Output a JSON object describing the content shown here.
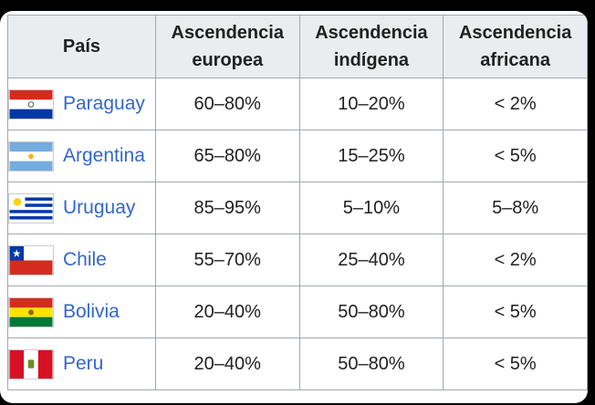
{
  "table": {
    "headers": [
      "País",
      "Ascendencia europea",
      "Ascendencia indígena",
      "Ascendencia africana"
    ],
    "rows": [
      {
        "country": "Paraguay",
        "flag_icon": "paraguay-flag-icon",
        "european": "60–80%",
        "indigenous": "10–20%",
        "african": "< 2%"
      },
      {
        "country": "Argentina",
        "flag_icon": "argentina-flag-icon",
        "european": "65–80%",
        "indigenous": "15–25%",
        "african": "< 5%"
      },
      {
        "country": "Uruguay",
        "flag_icon": "uruguay-flag-icon",
        "european": "85–95%",
        "indigenous": "5–10%",
        "african": "5–8%"
      },
      {
        "country": "Chile",
        "flag_icon": "chile-flag-icon",
        "european": "55–70%",
        "indigenous": "25–40%",
        "african": "< 2%"
      },
      {
        "country": "Bolivia",
        "flag_icon": "bolivia-flag-icon",
        "european": "20–40%",
        "indigenous": "50–80%",
        "african": "< 5%"
      },
      {
        "country": "Peru",
        "flag_icon": "peru-flag-icon",
        "european": "20–40%",
        "indigenous": "50–80%",
        "african": "< 5%"
      }
    ]
  },
  "colors": {
    "link": "#3366cc",
    "header_bg": "#eaecf0",
    "border": "#a2a9b1"
  }
}
